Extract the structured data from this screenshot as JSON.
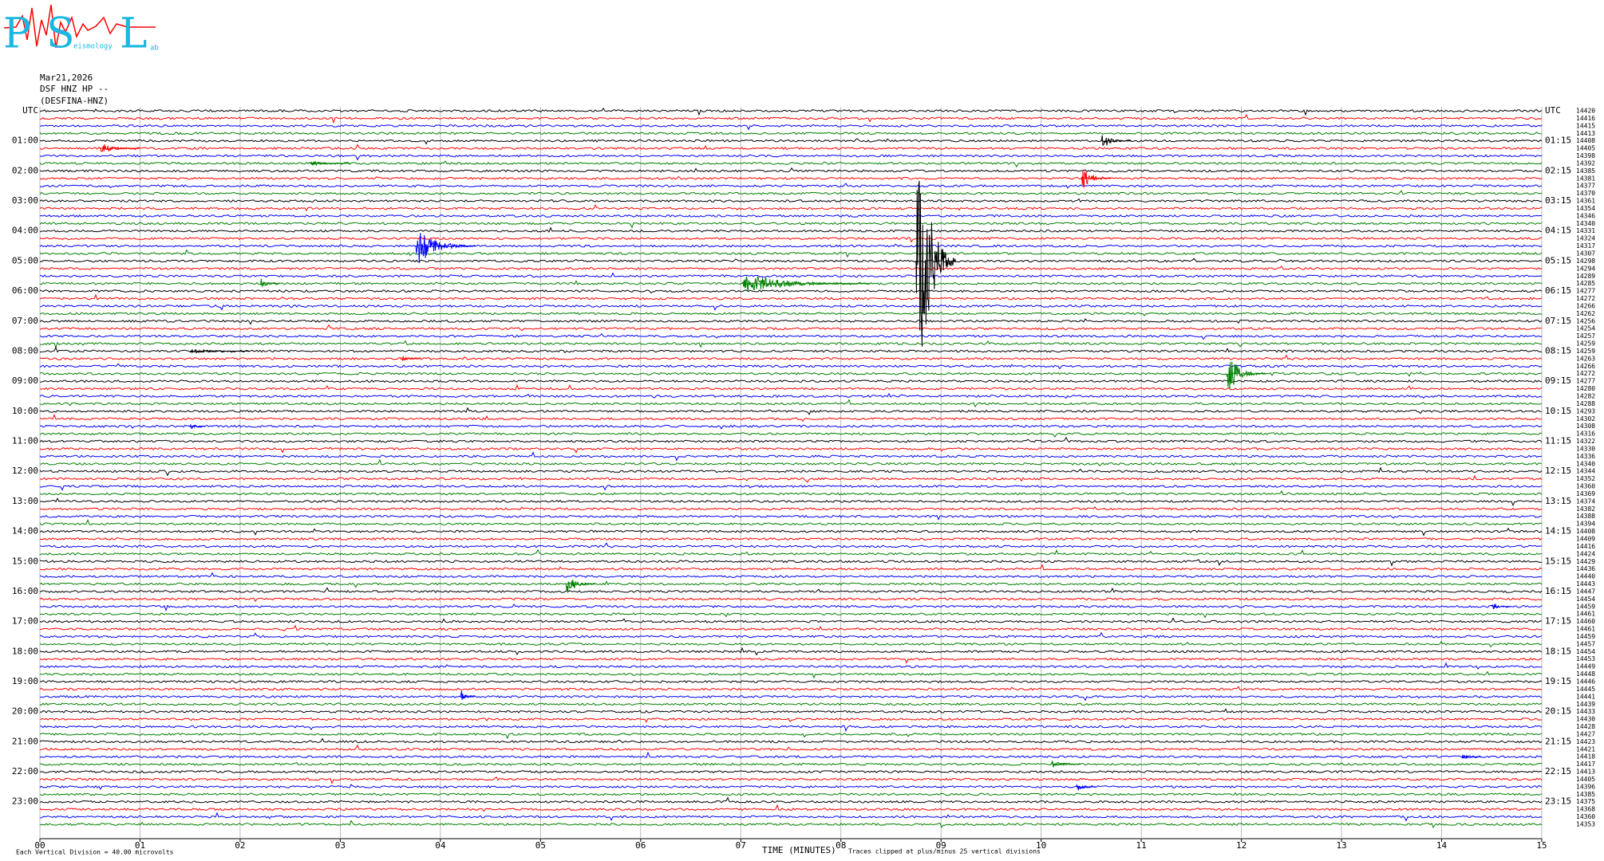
{
  "logo": {
    "p": "P",
    "s": "S",
    "l": "L",
    "seismology": "eismology",
    "lab": "ab"
  },
  "chart_data": {
    "type": "helicorder",
    "header": [
      "Mar21,2026",
      "DSF HNZ HP --",
      "(DESFINA-HNZ)"
    ],
    "left_labels": [
      "UTC",
      "01:00",
      "02:00",
      "03:00",
      "04:00",
      "05:00",
      "06:00",
      "07:00",
      "08:00",
      "09:00",
      "10:00",
      "11:00",
      "12:00",
      "13:00",
      "14:00",
      "15:00",
      "16:00",
      "17:00",
      "18:00",
      "19:00",
      "20:00",
      "21:00",
      "22:00",
      "23:00"
    ],
    "right_labels": [
      "UTC",
      "01:15",
      "02:15",
      "03:15",
      "04:15",
      "05:15",
      "06:15",
      "07:15",
      "08:15",
      "09:15",
      "10:15",
      "11:15",
      "12:15",
      "13:15",
      "14:15",
      "15:15",
      "16:15",
      "17:15",
      "18:15",
      "19:15",
      "20:15",
      "21:15",
      "22:15",
      "23:15"
    ],
    "trace_numbers": [
      14420,
      14416,
      14415,
      14413,
      14408,
      14405,
      14398,
      14392,
      14385,
      14381,
      14377,
      14370,
      14361,
      14354,
      14346,
      14340,
      14331,
      14324,
      14317,
      14307,
      14298,
      14294,
      14289,
      14285,
      14277,
      14272,
      14266,
      14262,
      14256,
      14254,
      14257,
      14259,
      14259,
      14263,
      14266,
      14272,
      14277,
      14280,
      14282,
      14288,
      14293,
      14302,
      14308,
      14316,
      14322,
      14330,
      14336,
      14340,
      14344,
      14352,
      14360,
      14369,
      14374,
      14382,
      14388,
      14394,
      14408,
      14409,
      14416,
      14424,
      14429,
      14436,
      14440,
      14443,
      14447,
      14454,
      14459,
      14461,
      14460,
      14461,
      14459,
      14457,
      14454,
      14453,
      14449,
      14448,
      14446,
      14445,
      14441,
      14439,
      14433,
      14430,
      14428,
      14427,
      14423,
      14421,
      14418,
      14417,
      14413,
      14405,
      14396,
      14385,
      14375,
      14368,
      14360,
      14353
    ],
    "trace_colors": [
      "#000000",
      "#ff0000",
      "#0000ff",
      "#008000"
    ],
    "xlabel": "TIME (MINUTES)",
    "xlim": [
      0,
      15
    ],
    "xticks": [
      {
        "value": 0,
        "label": "00"
      },
      {
        "value": 1,
        "label": "01"
      },
      {
        "value": 2,
        "label": "02"
      },
      {
        "value": 3,
        "label": "03"
      },
      {
        "value": 4,
        "label": "04"
      },
      {
        "value": 5,
        "label": "05"
      },
      {
        "value": 6,
        "label": "06"
      },
      {
        "value": 7,
        "label": "07"
      },
      {
        "value": 8,
        "label": "08"
      },
      {
        "value": 9,
        "label": "09"
      },
      {
        "value": 10,
        "label": "10"
      },
      {
        "value": 11,
        "label": "11"
      },
      {
        "value": 12,
        "label": "12"
      },
      {
        "value": 13,
        "label": "13"
      },
      {
        "value": 14,
        "label": "14"
      },
      {
        "value": 15,
        "label": "15"
      }
    ],
    "grid": true,
    "scale_note": "Each Vertical Division =   40.00 microvolts",
    "clip_note": "Traces clipped at plus/minus 25 vertical divisions",
    "events": [
      {
        "trace": 4,
        "minute": 10.6,
        "amplitude": 12,
        "duration": 0.3
      },
      {
        "trace": 5,
        "minute": 0.6,
        "amplitude": 8,
        "duration": 0.4
      },
      {
        "trace": 7,
        "minute": 2.7,
        "amplitude": 4,
        "duration": 0.4
      },
      {
        "trace": 9,
        "minute": 10.4,
        "amplitude": 18,
        "duration": 0.3
      },
      {
        "trace": 18,
        "minute": 3.75,
        "amplitude": 30,
        "duration": 0.6
      },
      {
        "trace": 20,
        "minute": 8.75,
        "amplitude": 235,
        "duration": 0.4
      },
      {
        "trace": 23,
        "minute": 7.0,
        "amplitude": 15,
        "duration": 1.3
      },
      {
        "trace": 23,
        "minute": 2.2,
        "amplitude": 8,
        "duration": 0.2
      },
      {
        "trace": 32,
        "minute": 1.5,
        "amplitude": 4,
        "duration": 0.6
      },
      {
        "trace": 33,
        "minute": 3.6,
        "amplitude": 6,
        "duration": 0.2
      },
      {
        "trace": 35,
        "minute": 11.85,
        "amplitude": 30,
        "duration": 0.4
      },
      {
        "trace": 42,
        "minute": 1.5,
        "amplitude": 5,
        "duration": 0.15
      },
      {
        "trace": 63,
        "minute": 5.25,
        "amplitude": 18,
        "duration": 0.3
      },
      {
        "trace": 66,
        "minute": 14.5,
        "amplitude": 5,
        "duration": 0.2
      },
      {
        "trace": 78,
        "minute": 4.2,
        "amplitude": 10,
        "duration": 0.15
      },
      {
        "trace": 86,
        "minute": 14.2,
        "amplitude": 6,
        "duration": 0.2
      },
      {
        "trace": 87,
        "minute": 10.1,
        "amplitude": 6,
        "duration": 0.3
      },
      {
        "trace": 90,
        "minute": 10.35,
        "amplitude": 7,
        "duration": 0.2
      }
    ]
  }
}
